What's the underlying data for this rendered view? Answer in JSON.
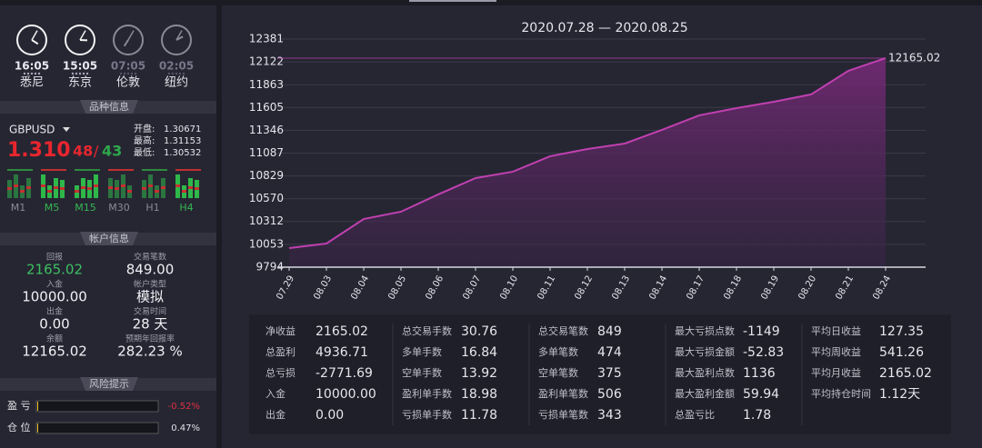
{
  "clocks": [
    {
      "time": "16:05",
      "city": "悉尼",
      "active": true
    },
    {
      "time": "15:05",
      "city": "东京",
      "active": true
    },
    {
      "time": "07:05",
      "city": "伦敦",
      "active": false
    },
    {
      "time": "02:05",
      "city": "纽约",
      "active": false
    }
  ],
  "sections": {
    "instrument": "品种信息",
    "account": "帐户信息",
    "risk": "风险提示"
  },
  "instrument": {
    "symbol": "GBPUSD",
    "price": "1.310",
    "bid": "48",
    "sep": "/",
    "ask": "43",
    "stats": [
      {
        "label": "开盘:",
        "value": 1.30671
      },
      {
        "label": "最高:",
        "value": 1.31153
      },
      {
        "label": "最低:",
        "value": 1.30532
      }
    ],
    "timeframes": [
      {
        "name": "M1",
        "active": false
      },
      {
        "name": "M5",
        "active": true
      },
      {
        "name": "M15",
        "active": true
      },
      {
        "name": "M30",
        "active": false
      },
      {
        "name": "H1",
        "active": false
      },
      {
        "name": "H4",
        "active": true
      }
    ]
  },
  "account": [
    {
      "label": "回报",
      "value": "2165.02"
    },
    {
      "label": "交易笔数",
      "value": "849.00"
    },
    {
      "label": "入金",
      "value": "10000.00"
    },
    {
      "label": "帐户类型",
      "value": "模拟"
    },
    {
      "label": "出金",
      "value": "0.00"
    },
    {
      "label": "交易时间",
      "value": "28 天"
    },
    {
      "label": "余额",
      "value": "12165.02"
    },
    {
      "label": "预期年回报率",
      "value": "282.23 %"
    }
  ],
  "risk": [
    {
      "label": "盈 亏",
      "value": "-0.52%"
    },
    {
      "label": "仓 位",
      "value": "0.47%"
    }
  ],
  "chart_data": {
    "type": "area",
    "title": "2020.07.28 — 2020.08.25",
    "categories": [
      "07.29",
      "08.03",
      "08.04",
      "08.05",
      "08.06",
      "08.07",
      "08.10",
      "08.11",
      "08.12",
      "08.13",
      "08.14",
      "08.17",
      "08.18",
      "08.19",
      "08.20",
      "08.21",
      "08.24"
    ],
    "values": [
      10010,
      10062,
      10340,
      10423,
      10619,
      10804,
      10877,
      11052,
      11134,
      11196,
      11351,
      11516,
      11598,
      11670,
      11753,
      12021,
      12165.02
    ],
    "color": "#c040b0",
    "ylim": [
      9794,
      12381
    ],
    "yticks": [
      9794,
      10053,
      10312,
      10570,
      10829,
      11087,
      11346,
      11605,
      11863,
      12122,
      12381
    ],
    "grid": true
  },
  "stats": [
    [
      {
        "label": "净收益",
        "value": "2165.02"
      },
      {
        "label": "总盈利",
        "value": "4936.71"
      },
      {
        "label": "总亏损",
        "value": "-2771.69"
      },
      {
        "label": "入金",
        "value": "10000.00"
      },
      {
        "label": "出金",
        "value": "0.00"
      }
    ],
    [
      {
        "label": "总交易手数",
        "value": "30.76"
      },
      {
        "label": "多单手数",
        "value": "16.84"
      },
      {
        "label": "空单手数",
        "value": "13.92"
      },
      {
        "label": "盈利单手数",
        "value": "18.98"
      },
      {
        "label": "亏损单手数",
        "value": "11.78"
      }
    ],
    [
      {
        "label": "总交易笔数",
        "value": "849"
      },
      {
        "label": "多单笔数",
        "value": "474"
      },
      {
        "label": "空单笔数",
        "value": "375"
      },
      {
        "label": "盈利单笔数",
        "value": "506"
      },
      {
        "label": "亏损单笔数",
        "value": "343"
      }
    ],
    [
      {
        "label": "最大亏损点数",
        "value": "-1149"
      },
      {
        "label": "最大亏损金额",
        "value": "-52.83"
      },
      {
        "label": "最大盈利点数",
        "value": "1136"
      },
      {
        "label": "最大盈利金额",
        "value": "59.94"
      },
      {
        "label": "总盈亏比",
        "value": "1.78"
      }
    ],
    [
      {
        "label": "平均日收益",
        "value": "127.35"
      },
      {
        "label": "平均周收益",
        "value": "541.26"
      },
      {
        "label": "平均月收益",
        "value": "2165.02"
      },
      {
        "label": "平均持仓时间",
        "value": "1.12天"
      }
    ]
  ]
}
